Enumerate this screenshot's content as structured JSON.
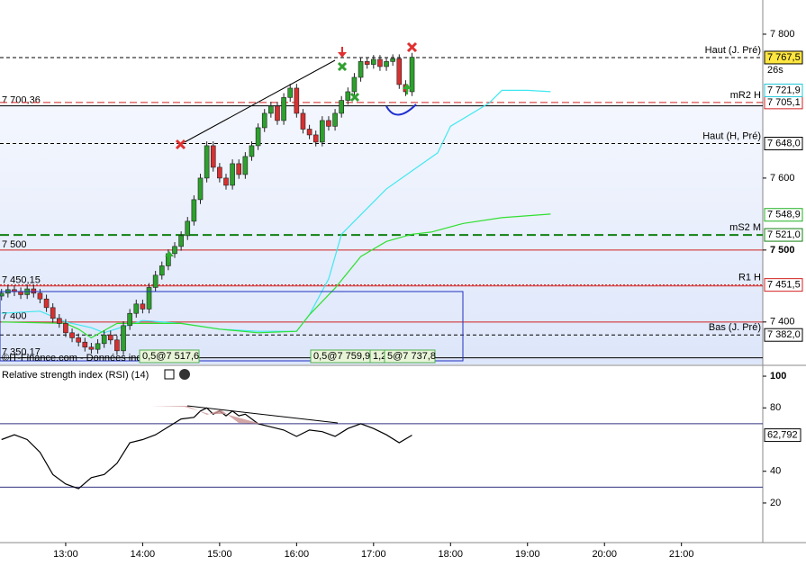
{
  "chart_data": {
    "type": "candlestick",
    "x": [
      730,
      735,
      740,
      745,
      750,
      755,
      760,
      765,
      770,
      775,
      780,
      785,
      790,
      795,
      800,
      805,
      810,
      815,
      820,
      825,
      830,
      835,
      840,
      845,
      850,
      855,
      860,
      865,
      870,
      875,
      880,
      885,
      890,
      895,
      900,
      905,
      910,
      915,
      920,
      925,
      930,
      935,
      940,
      945,
      950,
      955,
      960,
      965,
      970,
      975,
      980,
      985,
      990,
      995,
      1000,
      1005,
      1010,
      1015,
      1020,
      1025,
      1030,
      1035,
      1040,
      1045,
      1050
    ],
    "open": [
      7436,
      7440,
      7445,
      7442,
      7438,
      7446,
      7440,
      7432,
      7420,
      7405,
      7398,
      7385,
      7378,
      7372,
      7365,
      7362,
      7370,
      7382,
      7375,
      7360,
      7395,
      7412,
      7425,
      7418,
      7448,
      7465,
      7478,
      7495,
      7505,
      7520,
      7540,
      7570,
      7600,
      7645,
      7615,
      7600,
      7590,
      7620,
      7605,
      7630,
      7645,
      7670,
      7690,
      7700,
      7680,
      7712,
      7725,
      7690,
      7668,
      7660,
      7650,
      7680,
      7672,
      7690,
      7708,
      7720,
      7740,
      7762,
      7758,
      7765,
      7755,
      7762,
      7766,
      7730,
      7720
    ],
    "high": [
      7446,
      7451,
      7451,
      7448,
      7452,
      7452,
      7446,
      7438,
      7426,
      7411,
      7404,
      7391,
      7384,
      7378,
      7371,
      7376,
      7388,
      7388,
      7381,
      7401,
      7418,
      7431,
      7431,
      7454,
      7471,
      7484,
      7501,
      7511,
      7526,
      7546,
      7576,
      7606,
      7651,
      7651,
      7621,
      7606,
      7626,
      7626,
      7636,
      7651,
      7676,
      7696,
      7706,
      7706,
      7718,
      7731,
      7731,
      7696,
      7674,
      7666,
      7686,
      7686,
      7696,
      7714,
      7726,
      7746,
      7768,
      7768,
      7771,
      7771,
      7768,
      7772,
      7772,
      7736,
      7774
    ],
    "low": [
      7430,
      7434,
      7436,
      7432,
      7432,
      7434,
      7426,
      7414,
      7399,
      7392,
      7379,
      7372,
      7366,
      7359,
      7356,
      7356,
      7364,
      7369,
      7354,
      7354,
      7389,
      7406,
      7412,
      7412,
      7442,
      7459,
      7472,
      7489,
      7499,
      7514,
      7534,
      7564,
      7594,
      7609,
      7594,
      7584,
      7584,
      7599,
      7599,
      7624,
      7639,
      7664,
      7684,
      7674,
      7674,
      7706,
      7684,
      7662,
      7654,
      7644,
      7644,
      7666,
      7666,
      7684,
      7702,
      7714,
      7734,
      7752,
      7752,
      7749,
      7749,
      7756,
      7724,
      7714,
      7714
    ],
    "close": [
      7440,
      7445,
      7442,
      7438,
      7446,
      7440,
      7432,
      7420,
      7405,
      7398,
      7385,
      7378,
      7372,
      7365,
      7362,
      7370,
      7382,
      7375,
      7360,
      7395,
      7412,
      7425,
      7418,
      7448,
      7465,
      7478,
      7495,
      7505,
      7520,
      7540,
      7570,
      7600,
      7645,
      7615,
      7600,
      7590,
      7620,
      7605,
      7630,
      7645,
      7670,
      7690,
      7700,
      7680,
      7712,
      7725,
      7690,
      7668,
      7660,
      7650,
      7680,
      7672,
      7690,
      7708,
      7720,
      7740,
      7762,
      7758,
      7765,
      7755,
      7762,
      7766,
      7730,
      7720,
      7768
    ],
    "up_color": "#2ea02e",
    "down_color": "#d83030",
    "xlim": [
      728.8,
      1323.4
    ],
    "xticks": [
      {
        "value": 780,
        "label": "13:00"
      },
      {
        "value": 840,
        "label": "14:00"
      },
      {
        "value": 900,
        "label": "15:00"
      },
      {
        "value": 960,
        "label": "16:00"
      },
      {
        "value": 1020,
        "label": "17:00"
      },
      {
        "value": 1080,
        "label": "18:00"
      },
      {
        "value": 1140,
        "label": "19:00"
      },
      {
        "value": 1200,
        "label": "20:00"
      },
      {
        "value": 1260,
        "label": "21:00"
      }
    ],
    "ylim": [
      7341,
      7847.5
    ],
    "yticks": [
      {
        "value": 7400,
        "label": "7 400"
      },
      {
        "value": 7500,
        "label": "7 500"
      },
      {
        "value": 7600,
        "label": "7 600"
      },
      {
        "value": 7800,
        "label": "7 800"
      }
    ],
    "lines": [
      {
        "color": "#40e8f0",
        "x": [
          730,
          760,
          780,
          800,
          810,
          840,
          870,
          900,
          930,
          960,
          970,
          985,
          995,
          1005,
          1030,
          1050,
          1070,
          1080,
          1110,
          1120,
          1140,
          1158
        ],
        "values": [
          7412,
          7415,
          7400,
          7392,
          7385,
          7402,
          7398,
          7390,
          7387,
          7387,
          7410,
          7460,
          7522,
          7540,
          7585,
          7610,
          7635,
          7672,
          7704,
          7722,
          7722,
          7720
        ]
      },
      {
        "color": "#30e030",
        "x": [
          730,
          780,
          790,
          800,
          820,
          850,
          870,
          900,
          930,
          960,
          970,
          990,
          1010,
          1030,
          1050,
          1065,
          1090,
          1120,
          1158
        ],
        "values": [
          7400,
          7398,
          7390,
          7378,
          7398,
          7398,
          7398,
          7390,
          7385,
          7387,
          7410,
          7447,
          7491,
          7512,
          7522,
          7525,
          7537,
          7545,
          7550
        ]
      }
    ],
    "lines_value_labels": [
      {
        "value": 7721.9,
        "label": "7 721,9",
        "color": "#20c8d8"
      },
      {
        "value": 7548.9,
        "label": "7 548,9",
        "color": "#20b020"
      }
    ],
    "levels": [
      {
        "name": "Haut (J. Pré)",
        "value": 7767.5,
        "label": "7 767,5",
        "color": "#000000",
        "dash": "4,3",
        "box": "#ffe640"
      },
      {
        "name": "mR2 H",
        "value": 7705.1,
        "label": "7 705,1",
        "color": "#d02020",
        "dash": "8,4",
        "box": "#ffffff"
      },
      {
        "name": "Haut (H, Pré)",
        "value": 7648.0,
        "label": "7 648,0",
        "color": "#000000",
        "dash": "4,3",
        "box": "#ffffff"
      },
      {
        "name": "mS2 M",
        "value": 7521.0,
        "label": "7 521,0",
        "color": "#108010",
        "dash": "10,5",
        "box": "#ffffff"
      },
      {
        "name": "R1 H",
        "value": 7451.5,
        "label": "7 451,5",
        "color": "#d02020",
        "dash": "2,2",
        "box": "#ffffff"
      },
      {
        "name": "Bas (J. Pré)",
        "value": 7382.0,
        "label": "7 382,0",
        "color": "#000000",
        "dash": "4,3",
        "box": "#ffffff"
      }
    ],
    "left_levels": [
      {
        "value": 7700.36,
        "label": "7 700,36",
        "color": "#000000"
      },
      {
        "value": 7500,
        "label": "7 500",
        "color": "#d02020"
      },
      {
        "value": 7450.15,
        "label": "7 450,15",
        "color": "#d02020"
      },
      {
        "value": 7400,
        "label": "7 400",
        "color": "#d02020"
      },
      {
        "value": 7350.17,
        "label": "7 350,17",
        "color": "#000000"
      }
    ],
    "timer": "26s",
    "annotations": [
      "0,5@7 517,6",
      "0,5@7 759,9",
      "1,2",
      "5@7 737,8"
    ],
    "watermark": "©IT-Finance.com - Données indicatives",
    "rsi": {
      "title": "Relative strength index (RSI) (14)",
      "x": [
        730,
        740,
        750,
        760,
        770,
        780,
        790,
        800,
        810,
        820,
        830,
        840,
        850,
        860,
        870,
        880,
        885,
        890,
        895,
        900,
        905,
        910,
        915,
        920,
        930,
        940,
        950,
        960,
        970,
        980,
        990,
        1000,
        1010,
        1020,
        1030,
        1040,
        1050
      ],
      "values": [
        60,
        63,
        60,
        52,
        38,
        32,
        29,
        36,
        38,
        45,
        58,
        60,
        63,
        68,
        73,
        74,
        78,
        80,
        76,
        78,
        75,
        78,
        75,
        76,
        70,
        68,
        66,
        62,
        66,
        65,
        62,
        67,
        70,
        67,
        63,
        58,
        62.792
      ],
      "last_label": "62,792",
      "color": "#000000",
      "ylim": [
        -5,
        105.7
      ],
      "yticks": [
        20,
        40,
        80,
        100
      ],
      "levels": [
        70,
        30
      ]
    }
  }
}
